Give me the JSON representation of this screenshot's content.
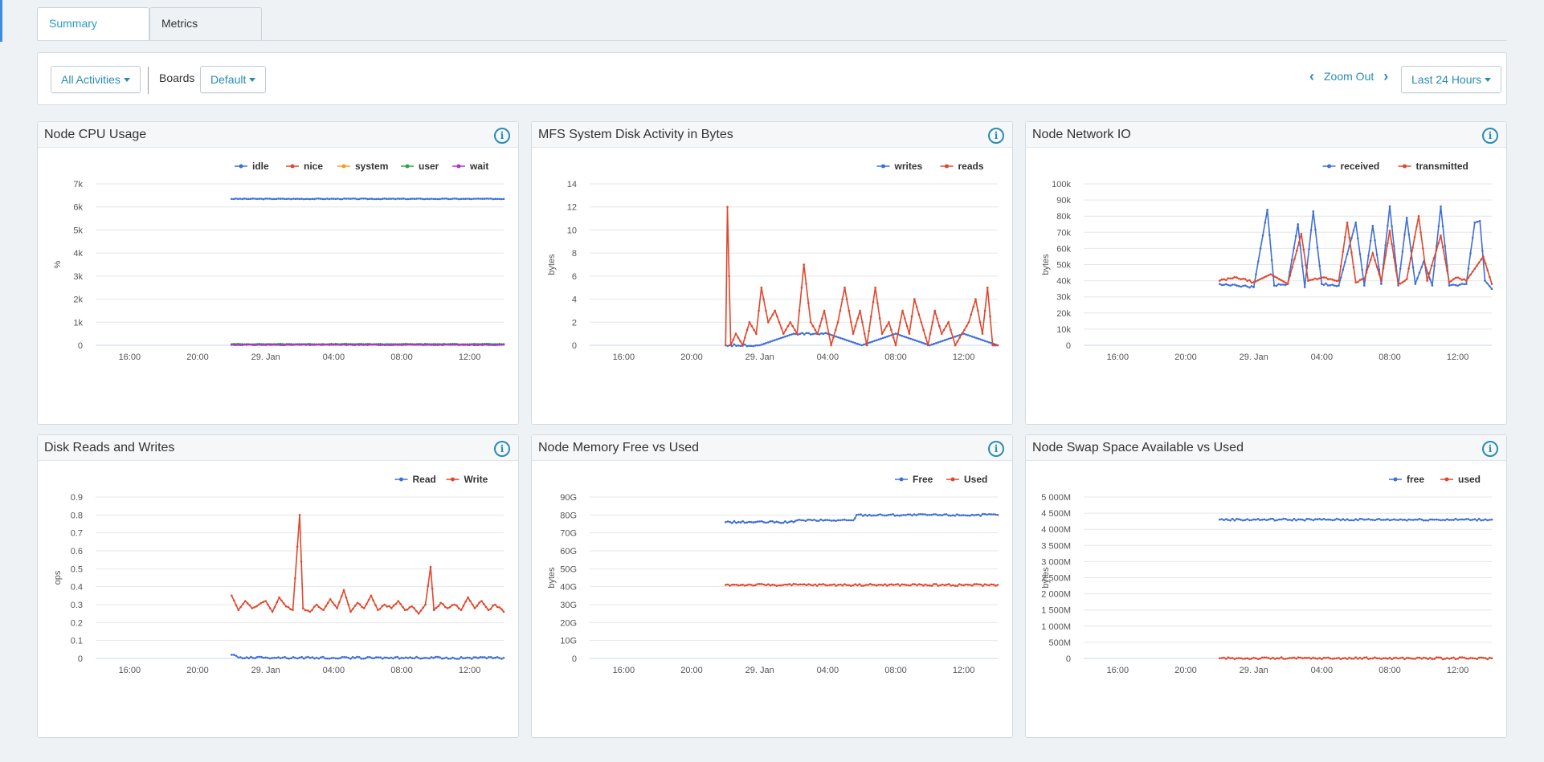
{
  "tabs": [
    {
      "label": "Summary",
      "active": true
    },
    {
      "label": "Metrics",
      "active": false
    }
  ],
  "toolbar": {
    "activities_label": "All Activities",
    "boards_label": "Boards",
    "boards_value": "Default",
    "zoom_out_label": "Zoom Out",
    "range_label": "Last 24 Hours"
  },
  "colors": {
    "blue": "#3d6fd6",
    "red": "#e0472d",
    "orange": "#f0a01a",
    "green": "#27a845",
    "purple": "#b42ed4",
    "accent": "#2a8cb5"
  },
  "panels": [
    {
      "title": "Node CPU Usage",
      "info_icon": "info-icon",
      "chart_data": {
        "type": "line",
        "ylabel": "%",
        "yticks": [
          "0",
          "1k",
          "2k",
          "3k",
          "4k",
          "5k",
          "6k",
          "7k"
        ],
        "ylim": [
          0,
          7000
        ],
        "xticks": [
          "16:00",
          "20:00",
          "29. Jan",
          "04:00",
          "08:00",
          "12:00"
        ],
        "xlim": [
          14,
          38
        ],
        "legend": "top-right",
        "series": [
          {
            "name": "idle",
            "color": "#3d6fd6",
            "x_start": 22,
            "x_end": 38,
            "y": 6350
          },
          {
            "name": "nice",
            "color": "#e0472d",
            "x_start": 22,
            "x_end": 38,
            "y": 30
          },
          {
            "name": "system",
            "color": "#f0a01a",
            "x_start": 22,
            "x_end": 38,
            "y": 40
          },
          {
            "name": "user",
            "color": "#27a845",
            "x_start": 22,
            "x_end": 38,
            "y": 50
          },
          {
            "name": "wait",
            "color": "#b42ed4",
            "x_start": 22,
            "x_end": 38,
            "y": 20
          }
        ]
      }
    },
    {
      "title": "MFS System Disk Activity in Bytes",
      "info_icon": "info-icon",
      "chart_data": {
        "type": "line",
        "ylabel": "bytes",
        "yticks": [
          "0",
          "2",
          "4",
          "6",
          "8",
          "10",
          "12",
          "14"
        ],
        "ylim": [
          0,
          14
        ],
        "xticks": [
          "16:00",
          "20:00",
          "29. Jan",
          "04:00",
          "08:00",
          "12:00"
        ],
        "xlim": [
          14,
          38
        ],
        "legend": "top-right",
        "series": [
          {
            "name": "writes",
            "color": "#3d6fd6",
            "x_start": 22,
            "x_end": 38,
            "points": [
              [
                22,
                0
              ],
              [
                24,
                0
              ],
              [
                26,
                1
              ],
              [
                28,
                1
              ],
              [
                30,
                0
              ],
              [
                32,
                1
              ],
              [
                34,
                0
              ],
              [
                36,
                1
              ],
              [
                38,
                0
              ]
            ]
          },
          {
            "name": "reads",
            "color": "#e0472d",
            "x_start": 22,
            "x_end": 38,
            "points": [
              [
                22,
                0
              ],
              [
                22.1,
                12
              ],
              [
                22.3,
                0
              ],
              [
                22.6,
                1
              ],
              [
                23,
                0
              ],
              [
                23.4,
                2
              ],
              [
                23.8,
                1
              ],
              [
                24.1,
                5
              ],
              [
                24.5,
                2
              ],
              [
                24.9,
                3
              ],
              [
                25.4,
                1
              ],
              [
                25.8,
                2
              ],
              [
                26.2,
                1
              ],
              [
                26.6,
                7
              ],
              [
                27,
                2
              ],
              [
                27.4,
                1
              ],
              [
                27.8,
                3
              ],
              [
                28.2,
                0
              ],
              [
                28.6,
                2
              ],
              [
                29,
                5
              ],
              [
                29.5,
                1
              ],
              [
                29.9,
                3
              ],
              [
                30.3,
                0
              ],
              [
                30.8,
                5
              ],
              [
                31.2,
                1
              ],
              [
                31.6,
                2
              ],
              [
                32,
                0
              ],
              [
                32.4,
                3
              ],
              [
                32.8,
                1
              ],
              [
                33.1,
                4
              ],
              [
                33.5,
                2
              ],
              [
                33.9,
                0
              ],
              [
                34.3,
                3
              ],
              [
                34.7,
                1
              ],
              [
                35.1,
                2
              ],
              [
                35.5,
                0
              ],
              [
                35.9,
                1
              ],
              [
                36.3,
                2
              ],
              [
                36.7,
                4
              ],
              [
                37.1,
                1
              ],
              [
                37.4,
                5
              ],
              [
                37.7,
                0
              ],
              [
                38,
                0
              ]
            ]
          }
        ]
      }
    },
    {
      "title": "Node Network IO",
      "info_icon": "info-icon",
      "chart_data": {
        "type": "line",
        "ylabel": "bytes",
        "yticks": [
          "0",
          "10k",
          "20k",
          "30k",
          "40k",
          "50k",
          "60k",
          "70k",
          "80k",
          "90k",
          "100k"
        ],
        "ylim": [
          0,
          100000
        ],
        "xticks": [
          "16:00",
          "20:00",
          "29. Jan",
          "04:00",
          "08:00",
          "12:00"
        ],
        "xlim": [
          14,
          38
        ],
        "legend": "top-right",
        "series": [
          {
            "name": "received",
            "color": "#3d6fd6",
            "x_start": 22,
            "x_end": 38,
            "points": [
              [
                22,
                38000
              ],
              [
                23,
                37000
              ],
              [
                24,
                36000
              ],
              [
                24.8,
                84000
              ],
              [
                25.2,
                37000
              ],
              [
                26,
                38000
              ],
              [
                26.6,
                75000
              ],
              [
                27,
                36000
              ],
              [
                27.5,
                83000
              ],
              [
                28,
                38000
              ],
              [
                29,
                37000
              ],
              [
                30,
                76000
              ],
              [
                30.5,
                37000
              ],
              [
                31,
                74000
              ],
              [
                31.5,
                38000
              ],
              [
                32,
                86000
              ],
              [
                32.5,
                37000
              ],
              [
                33,
                79000
              ],
              [
                33.5,
                38000
              ],
              [
                34,
                52000
              ],
              [
                34.5,
                37000
              ],
              [
                35,
                86000
              ],
              [
                35.5,
                37000
              ],
              [
                36.5,
                38000
              ],
              [
                37,
                76000
              ],
              [
                37.3,
                77000
              ],
              [
                37.6,
                40000
              ],
              [
                38,
                35000
              ]
            ]
          },
          {
            "name": "transmitted",
            "color": "#e0472d",
            "x_start": 22,
            "x_end": 38,
            "points": [
              [
                22,
                40000
              ],
              [
                23,
                42000
              ],
              [
                24,
                39000
              ],
              [
                25,
                44000
              ],
              [
                26,
                38000
              ],
              [
                26.8,
                69000
              ],
              [
                27.2,
                40000
              ],
              [
                28,
                42000
              ],
              [
                29,
                40000
              ],
              [
                29.5,
                76000
              ],
              [
                30,
                39000
              ],
              [
                30.5,
                41000
              ],
              [
                31,
                57000
              ],
              [
                31.5,
                40000
              ],
              [
                32,
                71000
              ],
              [
                32.5,
                38000
              ],
              [
                33,
                41000
              ],
              [
                33.7,
                80000
              ],
              [
                34.2,
                40000
              ],
              [
                35,
                68000
              ],
              [
                35.5,
                39000
              ],
              [
                36,
                42000
              ],
              [
                36.5,
                40000
              ],
              [
                37.5,
                55000
              ],
              [
                38,
                38000
              ]
            ]
          }
        ]
      }
    },
    {
      "title": "Disk Reads and Writes",
      "info_icon": "info-icon",
      "chart_data": {
        "type": "line",
        "ylabel": "ops",
        "yticks": [
          "0",
          "0.1",
          "0.2",
          "0.3",
          "0.4",
          "0.5",
          "0.6",
          "0.7",
          "0.8",
          "0.9"
        ],
        "ylim": [
          0,
          0.9
        ],
        "xticks": [
          "16:00",
          "20:00",
          "29. Jan",
          "04:00",
          "08:00",
          "12:00"
        ],
        "xlim": [
          14,
          38
        ],
        "legend": "top-right",
        "series": [
          {
            "name": "Read",
            "color": "#3d6fd6",
            "x_start": 22,
            "x_end": 38,
            "points": [
              [
                22,
                0.02
              ],
              [
                22.4,
                0.005
              ],
              [
                24,
                0.005
              ],
              [
                28,
                0.003
              ],
              [
                32,
                0.004
              ],
              [
                36,
                0.003
              ],
              [
                38,
                0.003
              ]
            ]
          },
          {
            "name": "Write",
            "color": "#e0472d",
            "x_start": 22,
            "x_end": 38,
            "points": [
              [
                22,
                0.35
              ],
              [
                22.4,
                0.27
              ],
              [
                22.8,
                0.32
              ],
              [
                23.2,
                0.28
              ],
              [
                23.6,
                0.3
              ],
              [
                24,
                0.32
              ],
              [
                24.4,
                0.26
              ],
              [
                24.8,
                0.34
              ],
              [
                25.2,
                0.29
              ],
              [
                25.6,
                0.27
              ],
              [
                26,
                0.8
              ],
              [
                26.2,
                0.28
              ],
              [
                26.6,
                0.26
              ],
              [
                27,
                0.3
              ],
              [
                27.4,
                0.27
              ],
              [
                27.8,
                0.33
              ],
              [
                28.2,
                0.28
              ],
              [
                28.6,
                0.38
              ],
              [
                29,
                0.26
              ],
              [
                29.4,
                0.31
              ],
              [
                29.8,
                0.28
              ],
              [
                30.2,
                0.35
              ],
              [
                30.6,
                0.27
              ],
              [
                31,
                0.3
              ],
              [
                31.4,
                0.28
              ],
              [
                31.8,
                0.32
              ],
              [
                32.2,
                0.27
              ],
              [
                32.6,
                0.29
              ],
              [
                33,
                0.25
              ],
              [
                33.4,
                0.3
              ],
              [
                33.7,
                0.51
              ],
              [
                33.9,
                0.27
              ],
              [
                34.3,
                0.31
              ],
              [
                34.7,
                0.28
              ],
              [
                35.1,
                0.3
              ],
              [
                35.5,
                0.27
              ],
              [
                35.9,
                0.34
              ],
              [
                36.3,
                0.28
              ],
              [
                36.7,
                0.32
              ],
              [
                37.1,
                0.27
              ],
              [
                37.5,
                0.3
              ],
              [
                38,
                0.26
              ]
            ]
          }
        ]
      }
    },
    {
      "title": "Node Memory Free vs Used",
      "info_icon": "info-icon",
      "chart_data": {
        "type": "line",
        "ylabel": "bytes",
        "yticks": [
          "0",
          "10G",
          "20G",
          "30G",
          "40G",
          "50G",
          "60G",
          "70G",
          "80G",
          "90G"
        ],
        "ylim": [
          0,
          90
        ],
        "xticks": [
          "16:00",
          "20:00",
          "29. Jan",
          "04:00",
          "08:00",
          "12:00"
        ],
        "xlim": [
          14,
          38
        ],
        "legend": "top-right",
        "series": [
          {
            "name": "Free",
            "color": "#3d6fd6",
            "x_start": 22,
            "x_end": 38,
            "points": [
              [
                22,
                76
              ],
              [
                26,
                76
              ],
              [
                26.2,
                77
              ],
              [
                29.5,
                77
              ],
              [
                29.7,
                80
              ],
              [
                38,
                80
              ]
            ]
          },
          {
            "name": "Used",
            "color": "#e0472d",
            "x_start": 22,
            "x_end": 38,
            "points": [
              [
                22,
                41
              ],
              [
                38,
                41
              ]
            ]
          }
        ]
      }
    },
    {
      "title": "Node Swap Space Available vs Used",
      "info_icon": "info-icon",
      "chart_data": {
        "type": "line",
        "ylabel": "bytes",
        "yticks": [
          "0",
          "500M",
          "1 000M",
          "1 500M",
          "2 000M",
          "2 500M",
          "3 000M",
          "3 500M",
          "4 000M",
          "4 500M",
          "5 000M"
        ],
        "ylim": [
          0,
          5000
        ],
        "xticks": [
          "16:00",
          "20:00",
          "29. Jan",
          "04:00",
          "08:00",
          "12:00"
        ],
        "xlim": [
          14,
          38
        ],
        "legend": "top-right",
        "series": [
          {
            "name": "free",
            "color": "#3d6fd6",
            "x_start": 22,
            "x_end": 38,
            "points": [
              [
                22,
                4300
              ],
              [
                38,
                4300
              ]
            ]
          },
          {
            "name": "used",
            "color": "#e0472d",
            "x_start": 22,
            "x_end": 38,
            "points": [
              [
                22,
                5
              ],
              [
                38,
                5
              ]
            ]
          }
        ]
      }
    }
  ]
}
